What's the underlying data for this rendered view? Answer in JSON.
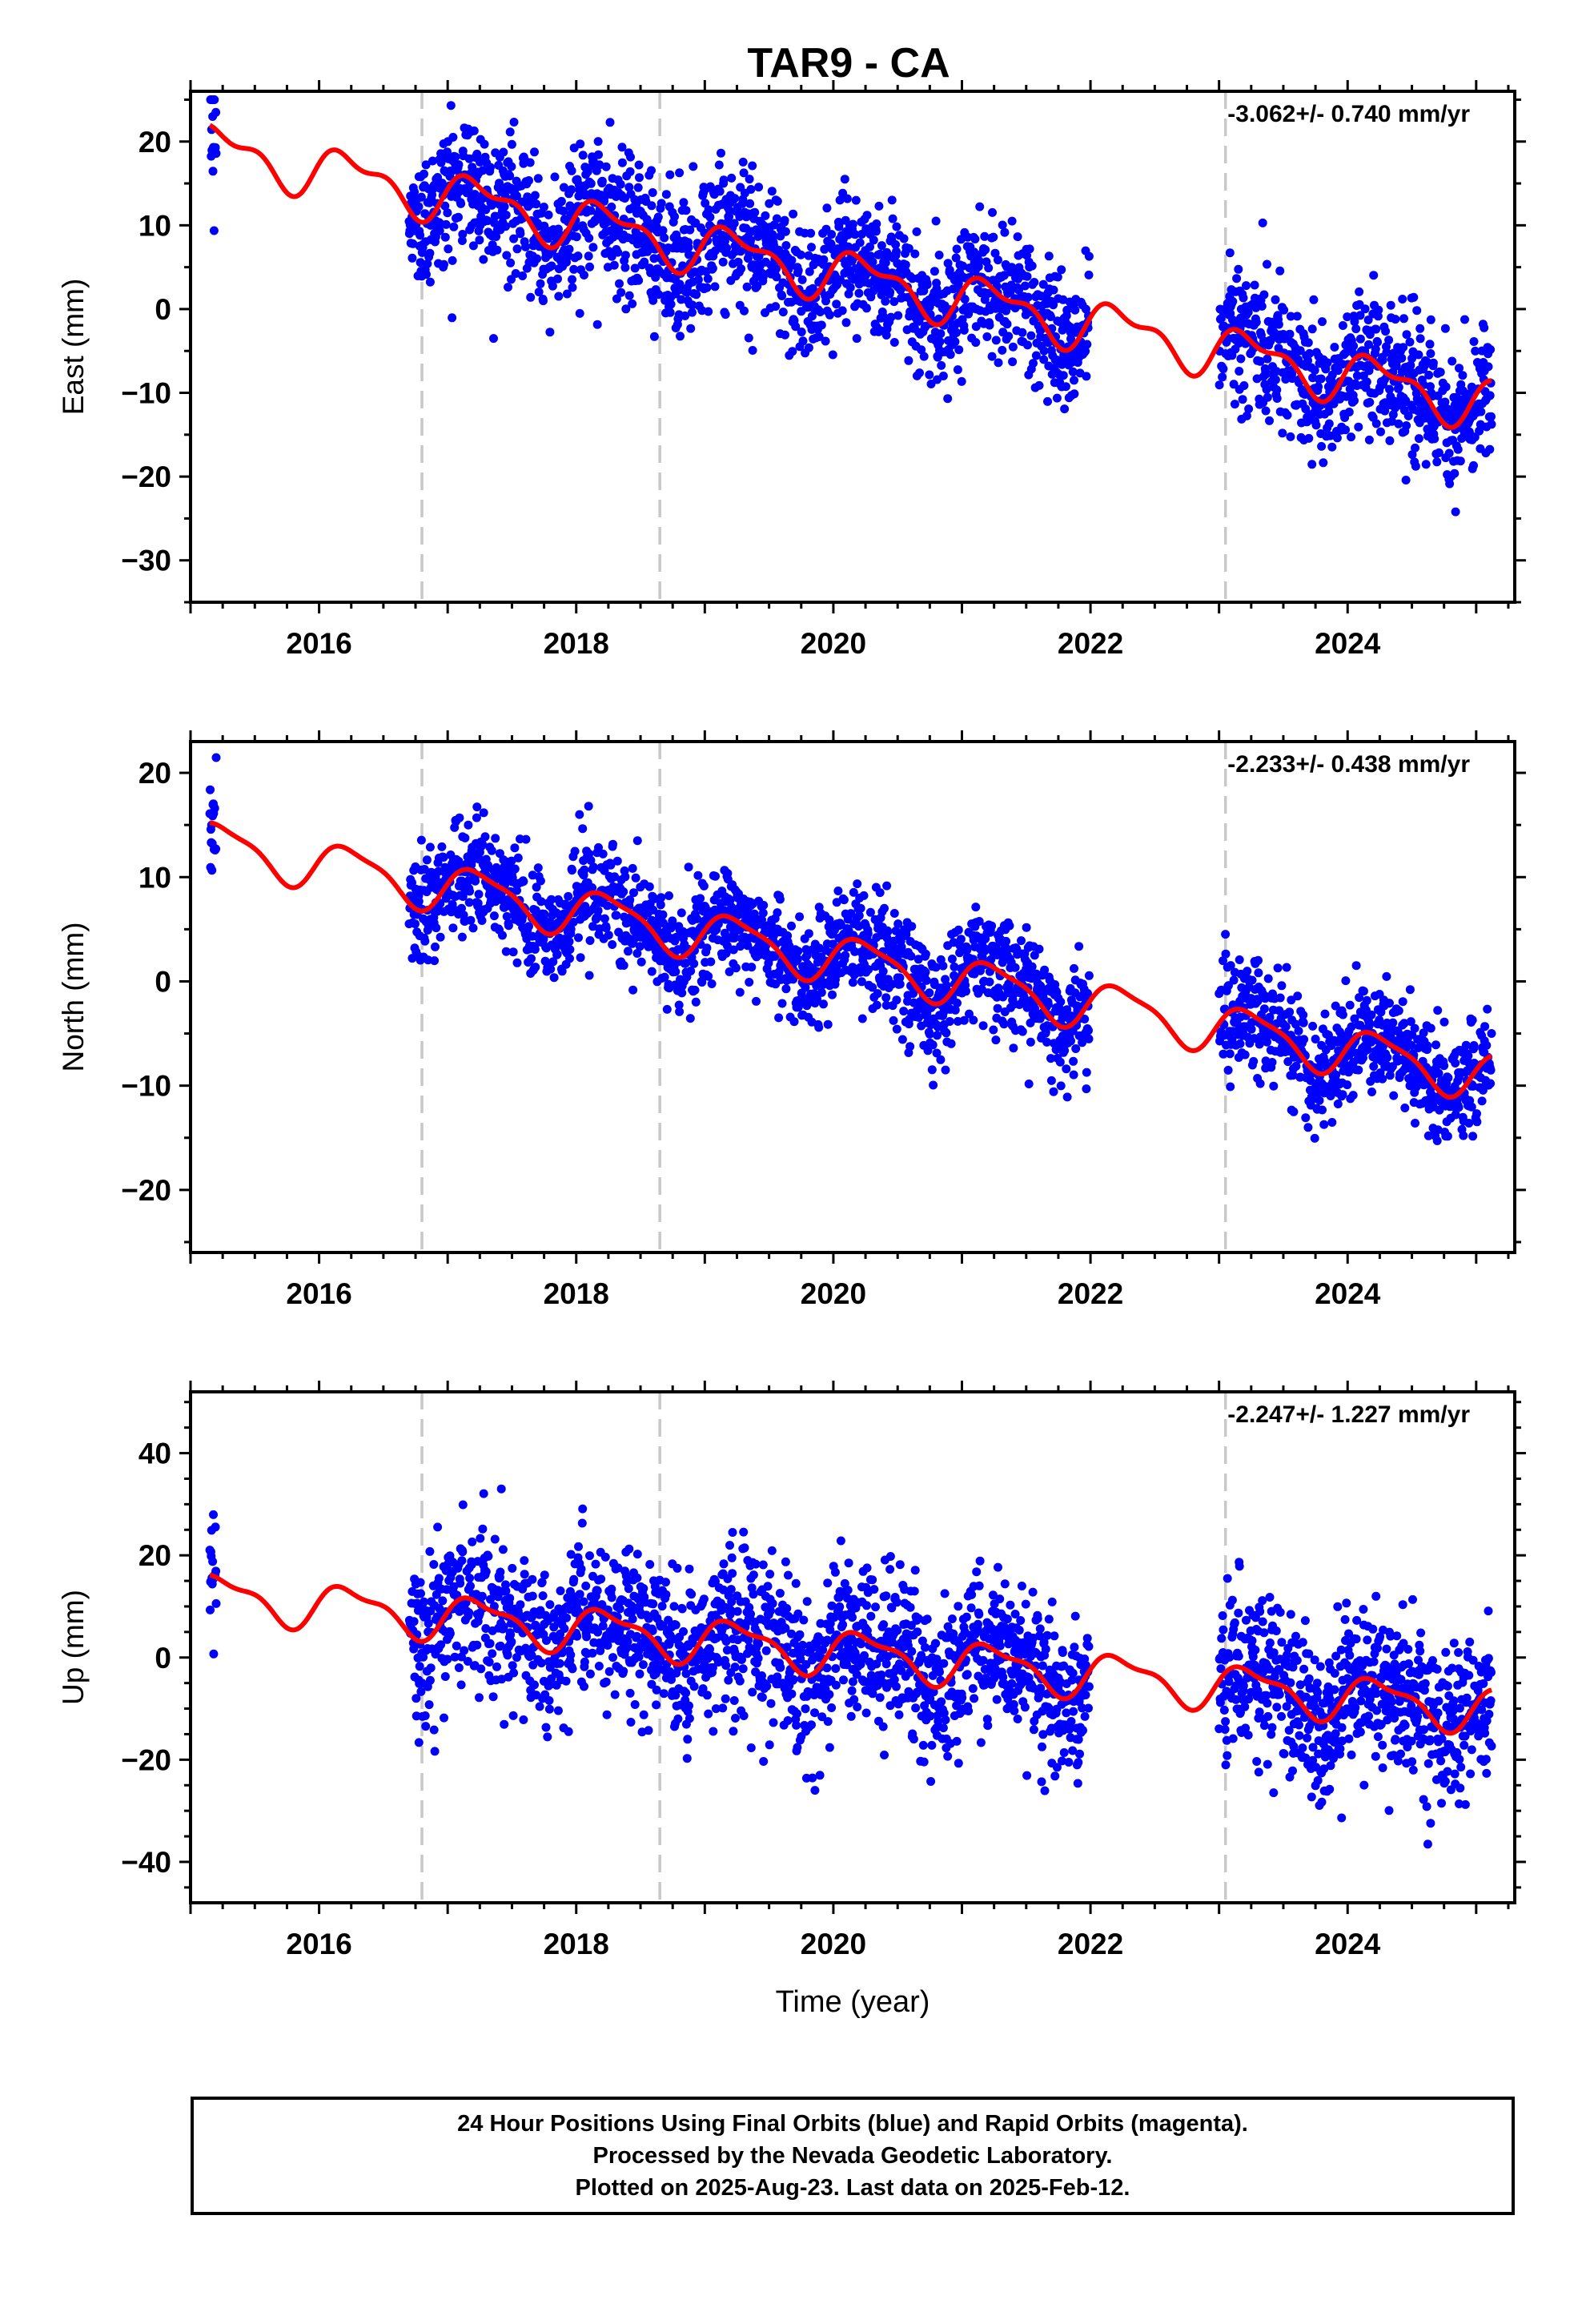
{
  "title": "TAR9 - CA",
  "colors": {
    "points": "#0000ff",
    "fit": "#ff0000",
    "steps": "#c8c8c8",
    "frame": "#000000"
  },
  "chart_data": [
    {
      "type": "scatter",
      "name": "east",
      "ylabel": "East (mm)",
      "xlabel": "",
      "rate": "-3.062+/- 0.740 mm/yr",
      "xlim": [
        2015.0,
        2025.3
      ],
      "ylim": [
        -35,
        26
      ],
      "x_ticks": [
        2016,
        2018,
        2020,
        2022,
        2024
      ],
      "y_ticks": [
        -30,
        -20,
        -10,
        0,
        10,
        20
      ],
      "step_epochs": [
        2016.8,
        2018.65,
        2023.05
      ],
      "data_spans": [
        [
          2015.15,
          2015.2
        ],
        [
          2016.7,
          2021.99
        ],
        [
          2023.0,
          2025.12
        ]
      ],
      "trend": {
        "rate": -3.062,
        "offset": 19.0,
        "ref": 2015.2,
        "annual_amp": 2.6,
        "semiannual_amp": 1.3
      },
      "scatter_sd": 4.0
    },
    {
      "type": "scatter",
      "name": "north",
      "ylabel": "North (mm)",
      "xlabel": "",
      "rate": "-2.233+/- 0.438 mm/yr",
      "xlim": [
        2015.0,
        2025.3
      ],
      "ylim": [
        -26,
        23
      ],
      "x_ticks": [
        2016,
        2018,
        2020,
        2022,
        2024
      ],
      "y_ticks": [
        -20,
        -10,
        0,
        10,
        20
      ],
      "step_epochs": [
        2016.8,
        2018.65,
        2023.05
      ],
      "data_spans": [
        [
          2015.15,
          2015.2
        ],
        [
          2016.7,
          2021.99
        ],
        [
          2023.0,
          2025.12
        ]
      ],
      "trend": {
        "rate": -2.233,
        "offset": 13.0,
        "ref": 2015.2,
        "annual_amp": 2.2,
        "semiannual_amp": 0.6
      },
      "scatter_sd": 2.6
    },
    {
      "type": "scatter",
      "name": "up",
      "ylabel": "Up (mm)",
      "xlabel": "Time (year)",
      "rate": "-2.247+/- 1.227 mm/yr",
      "xlim": [
        2015.0,
        2025.3
      ],
      "ylim": [
        -48,
        52
      ],
      "x_ticks": [
        2016,
        2018,
        2020,
        2022,
        2024
      ],
      "y_ticks": [
        -40,
        -20,
        0,
        20,
        40
      ],
      "step_epochs": [
        2016.8,
        2018.65,
        2023.05
      ],
      "data_spans": [
        [
          2015.15,
          2015.2
        ],
        [
          2016.7,
          2021.99
        ],
        [
          2023.0,
          2025.12
        ]
      ],
      "trend": {
        "rate": -2.247,
        "offset": 12.0,
        "ref": 2015.2,
        "annual_amp": 4.0,
        "semiannual_amp": 1.5
      },
      "scatter_sd": 7.5
    }
  ],
  "footer": {
    "line1": "24 Hour Positions Using Final Orbits (blue) and Rapid Orbits (magenta).",
    "line2": "Processed by the Nevada Geodetic Laboratory.",
    "line3": "Plotted on 2025-Aug-23. Last data on 2025-Feb-12."
  }
}
